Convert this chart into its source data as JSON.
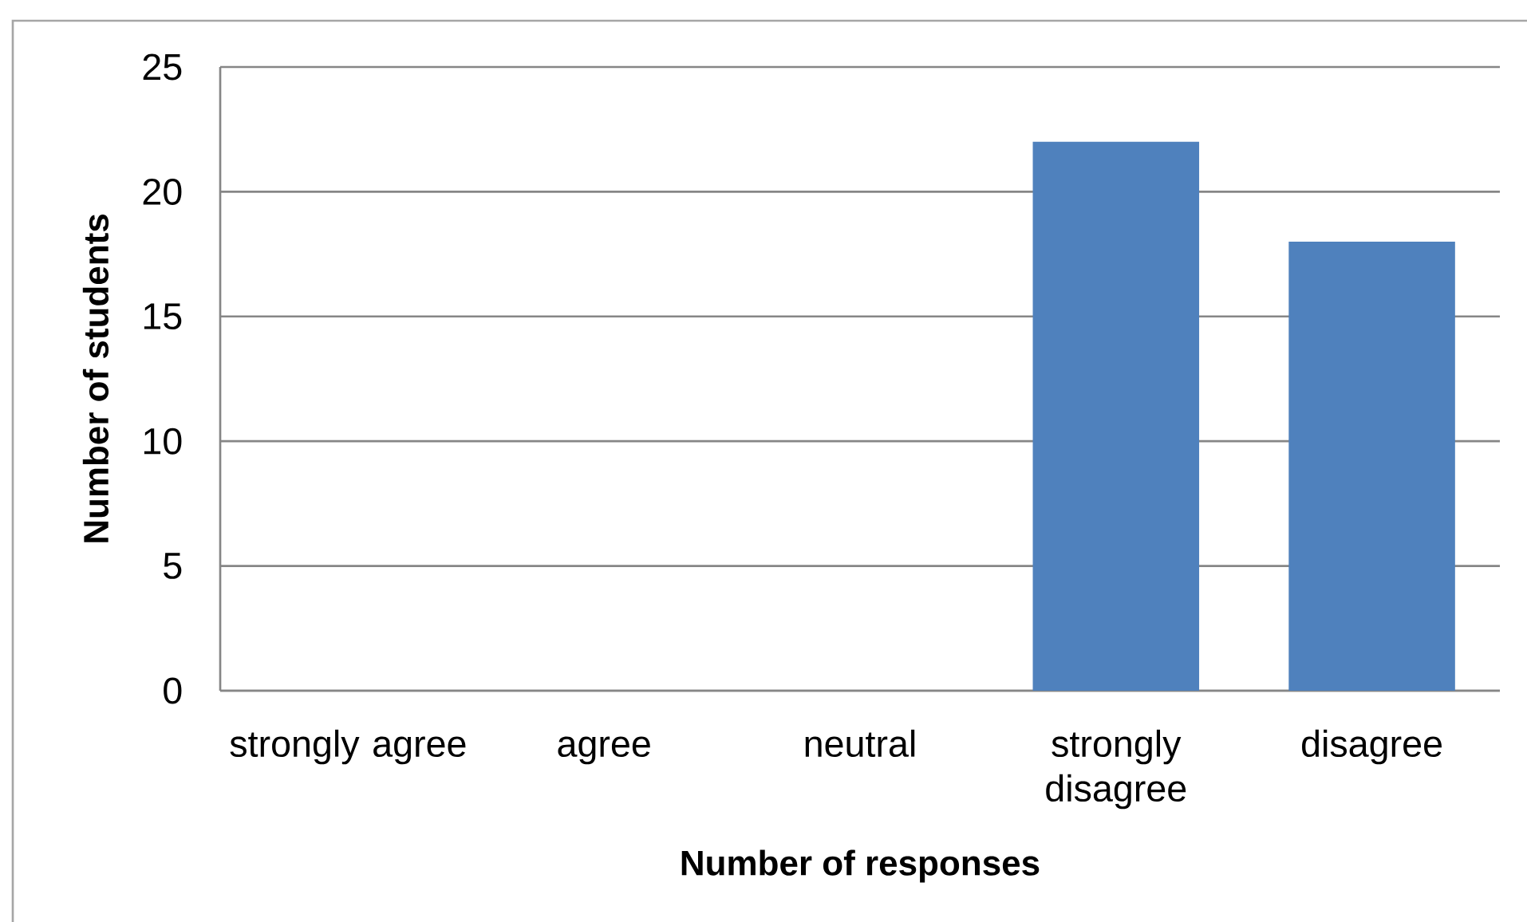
{
  "chart_data": {
    "type": "bar",
    "categories": [
      "strongly agree",
      "agree",
      "neutral",
      "strongly disagree",
      "disagree"
    ],
    "values": [
      0,
      0,
      0,
      22,
      18
    ],
    "color": "#4f81bd",
    "xlabel": "Number of responses",
    "ylabel": "Number of students",
    "ylim": [
      0,
      25
    ],
    "yticks": [
      0,
      5,
      10,
      15,
      20,
      25
    ],
    "grid": "y"
  }
}
